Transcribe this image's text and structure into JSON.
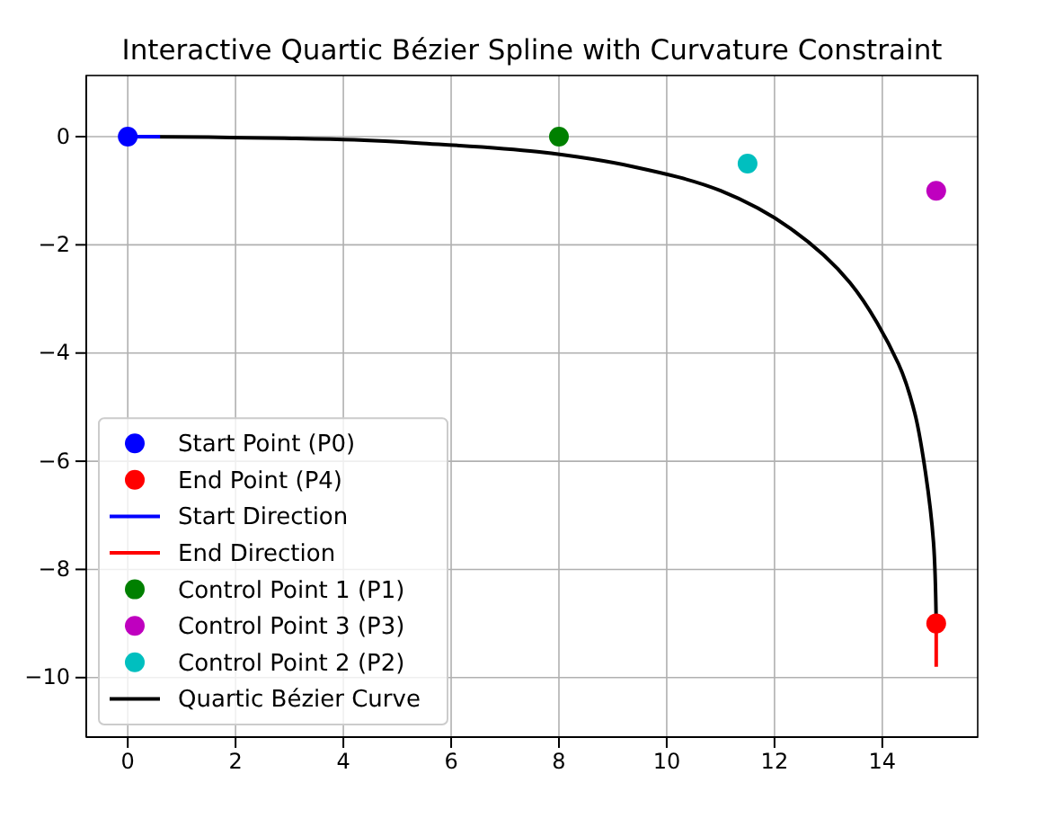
{
  "chart_data": {
    "type": "scatter",
    "title": "Interactive Quartic Bézier Spline with Curvature Constraint",
    "xlim": [
      -0.77,
      15.77
    ],
    "ylim": [
      -11.1,
      1.13
    ],
    "xticks": [
      0,
      2,
      4,
      6,
      8,
      10,
      12,
      14
    ],
    "yticks": [
      -10,
      -8,
      -6,
      -4,
      -2,
      0
    ],
    "grid": true,
    "legend": "bottom left",
    "marker": "circle",
    "series": [
      {
        "name": "Start Point (P0)",
        "color": "#0000ff",
        "x": [
          0
        ],
        "values": [
          0
        ]
      },
      {
        "name": "End Point (P4)",
        "color": "#ff0000",
        "x": [
          15
        ],
        "values": [
          -9
        ]
      },
      {
        "name": "Start Direction",
        "type": "line",
        "marker": "none",
        "color": "#0000ff",
        "x": [
          0,
          0.6
        ],
        "values": [
          0,
          0
        ]
      },
      {
        "name": "End Direction",
        "type": "line",
        "marker": "none",
        "color": "#ff0000",
        "x": [
          15,
          15
        ],
        "values": [
          -9,
          -9.8
        ]
      },
      {
        "name": "Control Point 1 (P1)",
        "color": "#008000",
        "x": [
          8
        ],
        "values": [
          0
        ]
      },
      {
        "name": "Control Point 3 (P3)",
        "color": "#bf00bf",
        "x": [
          15
        ],
        "values": [
          -1
        ]
      },
      {
        "name": "Control Point 2 (P2)",
        "color": "#00bfbf",
        "x": [
          11.5
        ],
        "values": [
          -0.5
        ]
      },
      {
        "name": "Quartic Bézier Curve",
        "type": "line",
        "marker": "none",
        "color": "#000000",
        "x": [
          0,
          1.5,
          2.9,
          4.2,
          5.4,
          7.6,
          9.4,
          11.0,
          12.3,
          13.4,
          14.3,
          14.6,
          14.8,
          14.95,
          15
        ],
        "values": [
          0,
          -0.01,
          -0.03,
          -0.06,
          -0.12,
          -0.28,
          -0.56,
          -1.0,
          -1.7,
          -2.7,
          -4.2,
          -5.1,
          -6.2,
          -7.5,
          -9
        ]
      }
    ]
  }
}
